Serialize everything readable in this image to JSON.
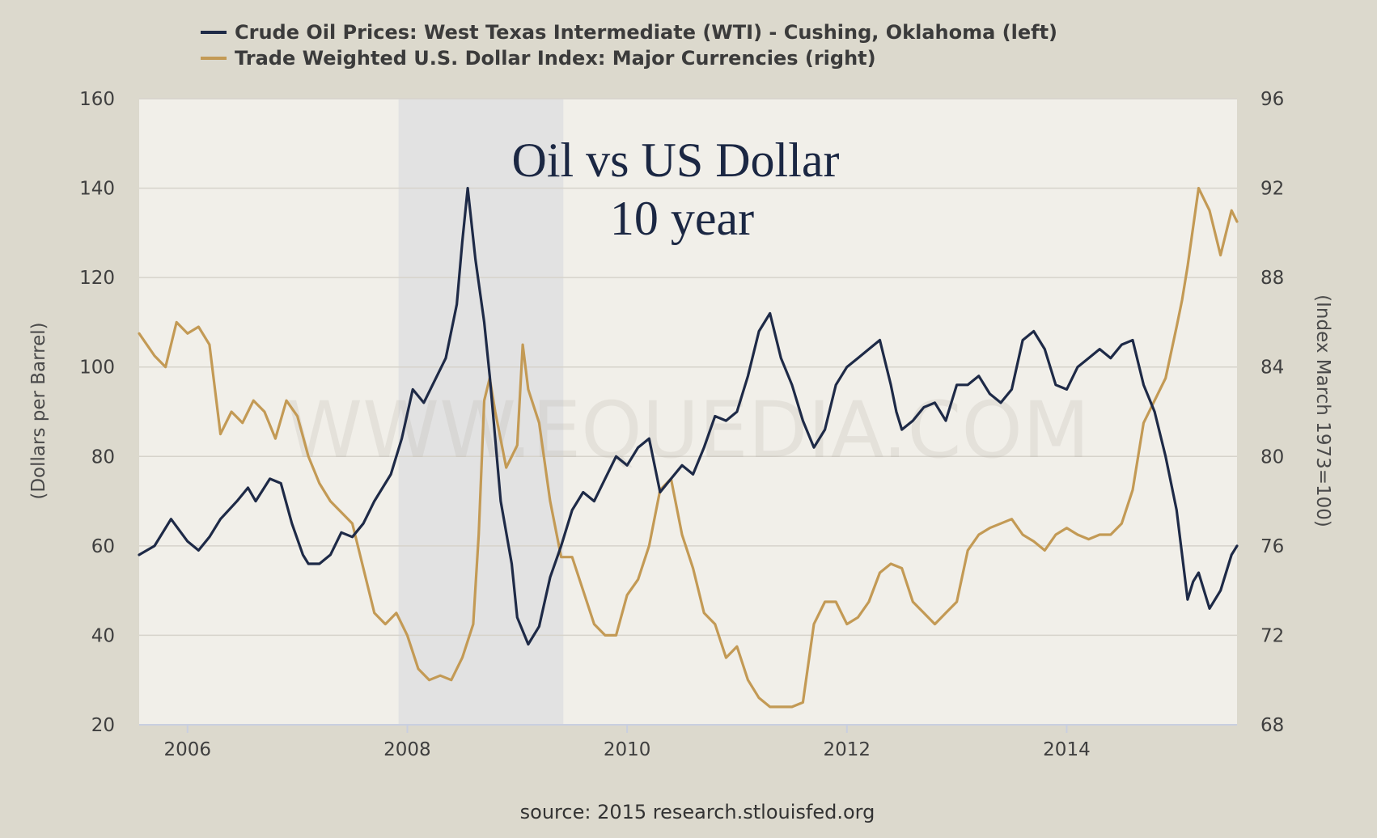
{
  "chart_data": {
    "type": "line",
    "title": "Oil vs US Dollar",
    "subtitle": "10 year",
    "source": "source: 2015 research.stlouisfed.org",
    "watermark": "WWW.EQUEDIA.COM",
    "ylabel_left": "(Dollars per Barrel)",
    "ylabel_right": "(Index March 1973=100)",
    "xlim": [
      2005.56,
      2015.55
    ],
    "ylim_left": [
      20,
      160
    ],
    "ylim_right": [
      68,
      96
    ],
    "x_ticks": [
      2006,
      2008,
      2010,
      2012,
      2014
    ],
    "y_left_ticks": [
      20,
      40,
      60,
      80,
      100,
      120,
      140,
      160
    ],
    "y_right_ticks": [
      68,
      72,
      76,
      80,
      84,
      88,
      92,
      96
    ],
    "recession": {
      "start": 2007.92,
      "end": 2009.42
    },
    "grid": true,
    "legend_position": "top",
    "series": [
      {
        "name": "Crude Oil Prices: West Texas Intermediate (WTI) - Cushing, Oklahoma (left)",
        "axis": "left",
        "color": "#1e2a47",
        "x": [
          2005.56,
          2005.7,
          2005.85,
          2006.0,
          2006.1,
          2006.2,
          2006.3,
          2006.45,
          2006.55,
          2006.62,
          2006.75,
          2006.85,
          2006.95,
          2007.05,
          2007.1,
          2007.2,
          2007.3,
          2007.4,
          2007.5,
          2007.6,
          2007.7,
          2007.85,
          2007.95,
          2008.05,
          2008.15,
          2008.25,
          2008.35,
          2008.45,
          2008.5,
          2008.55,
          2008.62,
          2008.7,
          2008.75,
          2008.85,
          2008.95,
          2009.0,
          2009.1,
          2009.2,
          2009.3,
          2009.4,
          2009.5,
          2009.6,
          2009.7,
          2009.8,
          2009.9,
          2010.0,
          2010.1,
          2010.2,
          2010.3,
          2010.4,
          2010.5,
          2010.6,
          2010.7,
          2010.8,
          2010.9,
          2011.0,
          2011.1,
          2011.2,
          2011.3,
          2011.4,
          2011.5,
          2011.6,
          2011.7,
          2011.8,
          2011.9,
          2012.0,
          2012.1,
          2012.2,
          2012.3,
          2012.4,
          2012.45,
          2012.5,
          2012.6,
          2012.7,
          2012.8,
          2012.9,
          2013.0,
          2013.1,
          2013.2,
          2013.3,
          2013.4,
          2013.5,
          2013.6,
          2013.7,
          2013.8,
          2013.9,
          2014.0,
          2014.1,
          2014.2,
          2014.3,
          2014.4,
          2014.5,
          2014.6,
          2014.7,
          2014.8,
          2014.9,
          2015.0,
          2015.05,
          2015.1,
          2015.15,
          2015.2,
          2015.3,
          2015.4,
          2015.5,
          2015.55
        ],
        "values": [
          58,
          60,
          66,
          61,
          59,
          62,
          66,
          70,
          73,
          70,
          75,
          74,
          65,
          58,
          56,
          56,
          58,
          63,
          62,
          65,
          70,
          76,
          84,
          95,
          92,
          97,
          102,
          114,
          128,
          140,
          124,
          110,
          98,
          70,
          56,
          44,
          38,
          42,
          53,
          60,
          68,
          72,
          70,
          75,
          80,
          78,
          82,
          84,
          72,
          75,
          78,
          76,
          82,
          89,
          88,
          90,
          98,
          108,
          112,
          102,
          96,
          88,
          82,
          86,
          96,
          100,
          102,
          104,
          106,
          96,
          90,
          86,
          88,
          91,
          92,
          88,
          96,
          96,
          98,
          94,
          92,
          95,
          106,
          108,
          104,
          96,
          95,
          100,
          102,
          104,
          102,
          105,
          106,
          96,
          90,
          80,
          68,
          58,
          48,
          52,
          54,
          46,
          50,
          58,
          60
        ]
      },
      {
        "name": "Trade Weighted U.S. Dollar Index: Major Currencies (right)",
        "axis": "right",
        "color": "#c39a55",
        "x": [
          2005.56,
          2005.7,
          2005.8,
          2005.9,
          2006.0,
          2006.1,
          2006.2,
          2006.3,
          2006.4,
          2006.5,
          2006.6,
          2006.7,
          2006.8,
          2006.9,
          2007.0,
          2007.1,
          2007.2,
          2007.3,
          2007.4,
          2007.5,
          2007.6,
          2007.7,
          2007.8,
          2007.9,
          2008.0,
          2008.1,
          2008.2,
          2008.3,
          2008.4,
          2008.5,
          2008.6,
          2008.65,
          2008.7,
          2008.75,
          2008.8,
          2008.9,
          2009.0,
          2009.05,
          2009.1,
          2009.2,
          2009.3,
          2009.4,
          2009.5,
          2009.6,
          2009.7,
          2009.8,
          2009.9,
          2010.0,
          2010.1,
          2010.2,
          2010.3,
          2010.4,
          2010.5,
          2010.6,
          2010.7,
          2010.8,
          2010.9,
          2011.0,
          2011.1,
          2011.2,
          2011.3,
          2011.4,
          2011.5,
          2011.6,
          2011.7,
          2011.8,
          2011.9,
          2012.0,
          2012.1,
          2012.2,
          2012.3,
          2012.4,
          2012.5,
          2012.6,
          2012.7,
          2012.8,
          2012.9,
          2013.0,
          2013.1,
          2013.2,
          2013.3,
          2013.4,
          2013.5,
          2013.6,
          2013.7,
          2013.8,
          2013.9,
          2014.0,
          2014.1,
          2014.2,
          2014.3,
          2014.4,
          2014.5,
          2014.6,
          2014.7,
          2014.8,
          2014.9,
          2015.0,
          2015.05,
          2015.1,
          2015.2,
          2015.3,
          2015.4,
          2015.5,
          2015.55
        ],
        "values": [
          85.5,
          84.5,
          84.0,
          86.0,
          85.5,
          85.8,
          85.0,
          81.0,
          82.0,
          81.5,
          82.5,
          82.0,
          80.8,
          82.5,
          81.8,
          80.0,
          78.8,
          78.0,
          77.5,
          77.0,
          75.0,
          73.0,
          72.5,
          73.0,
          72.0,
          70.5,
          70.0,
          70.2,
          70.0,
          71.0,
          72.5,
          76.5,
          82.5,
          83.5,
          82.0,
          79.5,
          80.5,
          85.0,
          83.0,
          81.5,
          78.0,
          75.5,
          75.5,
          74.0,
          72.5,
          72.0,
          72.0,
          73.8,
          74.5,
          76.0,
          78.5,
          79.0,
          76.5,
          75.0,
          73.0,
          72.5,
          71.0,
          71.5,
          70.0,
          69.2,
          68.8,
          68.8,
          68.8,
          69.0,
          72.5,
          73.5,
          73.5,
          72.5,
          72.8,
          73.5,
          74.8,
          75.2,
          75.0,
          73.5,
          73.0,
          72.5,
          73.0,
          73.5,
          75.8,
          76.5,
          76.8,
          77.0,
          77.2,
          76.5,
          76.2,
          75.8,
          76.5,
          76.8,
          76.5,
          76.3,
          76.5,
          76.5,
          77.0,
          78.5,
          81.5,
          82.5,
          83.5,
          85.8,
          87.0,
          88.5,
          92.0,
          91.0,
          89.0,
          91.0,
          90.5
        ]
      }
    ]
  }
}
